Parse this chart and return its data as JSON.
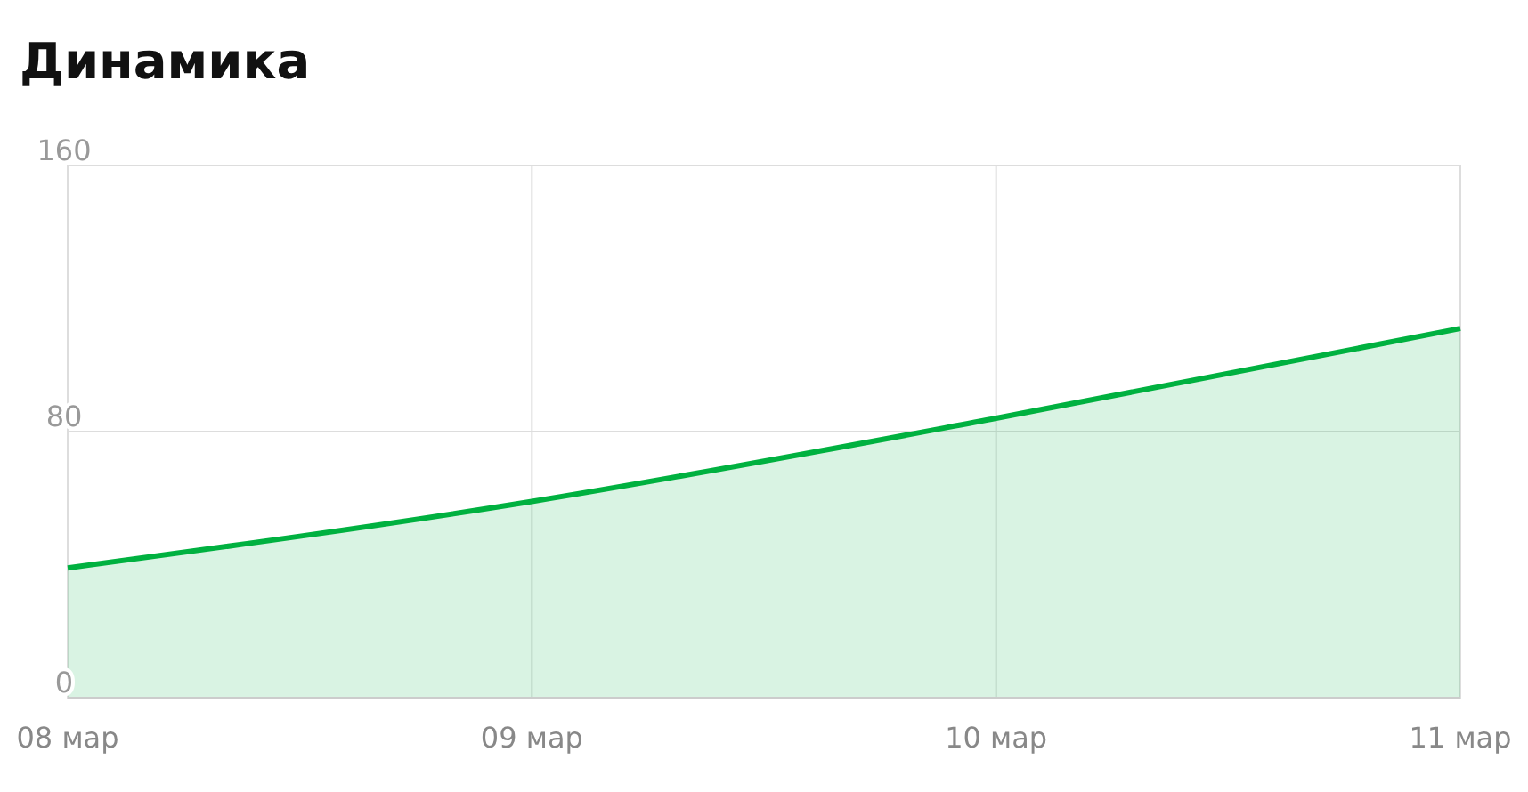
{
  "chart_data": {
    "type": "area",
    "title": "Динамика",
    "categories": [
      "08 мар",
      "09 мар",
      "10 мар",
      "11 мар"
    ],
    "series": [
      {
        "color": "#00b140",
        "values": [
          39,
          59,
          84,
          111
        ]
      }
    ],
    "ylim": [
      0,
      160
    ],
    "yticks": [
      0,
      80,
      160
    ],
    "grid": true
  }
}
